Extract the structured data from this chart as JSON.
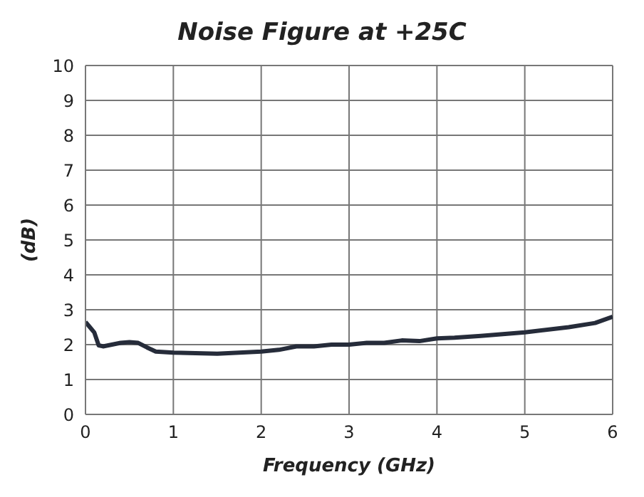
{
  "chart_data": {
    "type": "line",
    "title": "Noise Figure at +25C",
    "xlabel": "Frequency (GHz)",
    "ylabel": "(dB)",
    "x": [
      0,
      0.05,
      0.1,
      0.15,
      0.2,
      0.3,
      0.4,
      0.5,
      0.6,
      0.7,
      0.8,
      1.0,
      1.5,
      2.0,
      2.2,
      2.4,
      2.6,
      2.8,
      3.0,
      3.2,
      3.4,
      3.6,
      3.8,
      4.0,
      4.2,
      4.5,
      5.0,
      5.5,
      5.8,
      6.0
    ],
    "series": [
      {
        "color": "#262c3a",
        "values": [
          2.65,
          2.5,
          2.35,
          1.98,
          1.95,
          2.0,
          2.05,
          2.07,
          2.05,
          1.92,
          1.8,
          1.77,
          1.74,
          1.8,
          1.85,
          1.95,
          1.95,
          2.0,
          2.0,
          2.05,
          2.05,
          2.12,
          2.1,
          2.18,
          2.2,
          2.25,
          2.35,
          2.5,
          2.62,
          2.8
        ]
      }
    ],
    "xlim": [
      0,
      6
    ],
    "xticks": [
      0,
      1,
      2,
      3,
      4,
      5,
      6
    ],
    "ylim": [
      0,
      10
    ],
    "yticks": [
      0,
      1,
      2,
      3,
      4,
      5,
      6,
      7,
      8,
      9,
      10
    ],
    "grid": true,
    "marker": "none",
    "line_style": "solid"
  }
}
